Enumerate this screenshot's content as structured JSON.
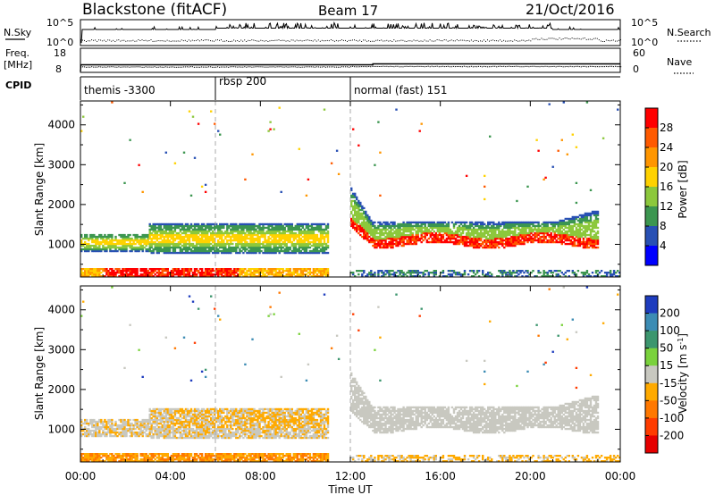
{
  "header": {
    "station": "Blackstone (fitACF)",
    "beam": "Beam 17",
    "date": "21/Oct/2016"
  },
  "summary_panels": {
    "nsky_label": "N.Sky",
    "nsky_ticks": [
      "10^5",
      "10^0"
    ],
    "nsearch_label": "N.Search",
    "nsearch_ticks": [
      "10^5",
      "10^0"
    ],
    "freq_label": "Freq.",
    "freq_unit": "[MHz]",
    "freq_ticks": [
      "18",
      "8"
    ],
    "nave_label": "Nave",
    "nave_ticks": [
      "60",
      "0"
    ],
    "cpid_label": "CPID"
  },
  "cpid_segments": [
    {
      "label": "themis -3300",
      "start_ut": 0.0
    },
    {
      "label": "rbsp 200",
      "start_ut": 6.0
    },
    {
      "label": "normal (fast) 151",
      "start_ut": 12.0
    }
  ],
  "x_axis": {
    "label": "Time UT",
    "ticks": [
      "00:00",
      "04:00",
      "08:00",
      "12:00",
      "16:00",
      "20:00",
      "00:00"
    ],
    "range_hours": [
      0,
      24
    ]
  },
  "power_colorbar": {
    "label": "Power [dB]",
    "ticks": [
      "28",
      "24",
      "20",
      "16",
      "12",
      "8",
      "4"
    ],
    "colors": [
      "#ff0000",
      "#ff5a00",
      "#ff9600",
      "#ffd200",
      "#8cc83c",
      "#3c9650",
      "#2850b4",
      "#0000ff"
    ]
  },
  "velocity_colorbar": {
    "label": "Velocity [m s",
    "label_sup": "-1",
    "label_end": "]",
    "ticks": [
      "200",
      "100",
      "50",
      "15",
      "-15",
      "-50",
      "-100",
      "-200"
    ],
    "colors": [
      "#1e3cbe",
      "#3c8cb4",
      "#3c966e",
      "#7ad23c",
      "#c8c8c0",
      "#ffaa00",
      "#ff7800",
      "#ff3c00",
      "#e60000"
    ]
  },
  "chart_data": {
    "type": "heatmap",
    "panels": [
      {
        "name": "power",
        "ylabel": "Slant Range [km]",
        "y_ticks": [
          "4000",
          "3000",
          "2000",
          "1000"
        ],
        "y_tick_values": [
          4000,
          3000,
          2000,
          1000
        ],
        "ylim": [
          180,
          4600
        ],
        "xlim_hours": [
          0,
          24
        ]
      },
      {
        "name": "velocity",
        "ylabel": "Slant Range [km]",
        "y_ticks": [
          "4000",
          "3000",
          "2000",
          "1000"
        ],
        "y_tick_values": [
          4000,
          3000,
          2000,
          1000
        ],
        "ylim": [
          180,
          4600
        ],
        "xlim_hours": [
          0,
          24
        ]
      }
    ],
    "cpid_change_hours": [
      6.0,
      12.0
    ]
  }
}
